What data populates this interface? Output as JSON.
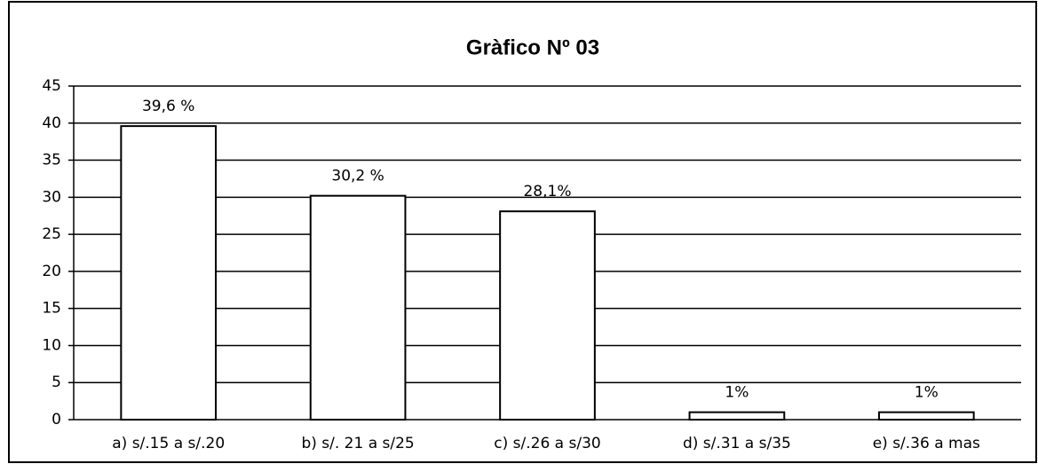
{
  "chart_data": {
    "type": "bar",
    "title": "Gràfico Nº 03",
    "categories": [
      "a) s/.15 a s/.20",
      "b) s/. 21 a s/25",
      "c) s/.26 a s/30",
      "d) s/.31 a s/35",
      "e) s/.36 a mas"
    ],
    "values": [
      39.6,
      30.2,
      28.1,
      1,
      1
    ],
    "value_labels": [
      "39,6 %",
      "30,2 %",
      "28,1%",
      "1%",
      "1%"
    ],
    "color": "#ffffff",
    "ylim": [
      0,
      45
    ],
    "yticks": [
      0,
      5,
      10,
      15,
      20,
      25,
      30,
      35,
      40,
      45
    ],
    "grid": true
  }
}
